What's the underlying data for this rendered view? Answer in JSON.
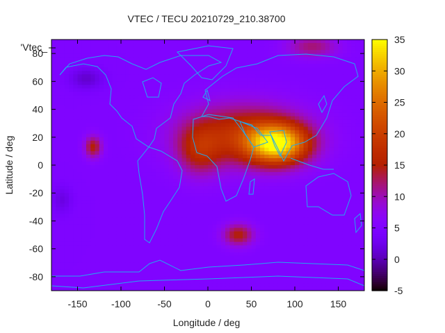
{
  "chart_data": {
    "type": "heatmap",
    "title": "VTEC / TECU 20210729_210.38700",
    "xlabel": "Longitude / deg",
    "ylabel": "Latitude / deg",
    "key_label": "'Vtec_",
    "xlim": [
      -180,
      180
    ],
    "ylim": [
      -90,
      90
    ],
    "x_ticks": [
      -150,
      -100,
      -50,
      0,
      50,
      100,
      150
    ],
    "y_ticks": [
      -80,
      -60,
      -40,
      -20,
      0,
      20,
      40,
      60,
      80
    ],
    "colorbar": {
      "range": [
        -5,
        35
      ],
      "ticks": [
        -5,
        0,
        5,
        10,
        15,
        20,
        25,
        30,
        35
      ],
      "palette": "black-blue-purple-red-orange-yellow"
    },
    "coastline_color": "#22aaee",
    "features": [
      {
        "name": "equatorial anomaly peak",
        "lon": 80,
        "lat": 15,
        "value": 30
      },
      {
        "name": "africa-asia dayside band",
        "lon": 40,
        "lat": 20,
        "value": 20
      },
      {
        "name": "pacific local max",
        "lon": -132,
        "lat": 13,
        "value": 15
      },
      {
        "name": "south atlantic high",
        "lon": 35,
        "lat": -50,
        "value": 15
      },
      {
        "name": "north polar enhancement",
        "lon": 130,
        "lat": 85,
        "value": 12
      },
      {
        "name": "south pacific minimum",
        "lon": -168,
        "lat": -25,
        "value": 2
      },
      {
        "name": "alaska minimum",
        "lon": -140,
        "lat": 62,
        "value": 1
      },
      {
        "name": "background",
        "value": 5
      }
    ]
  }
}
